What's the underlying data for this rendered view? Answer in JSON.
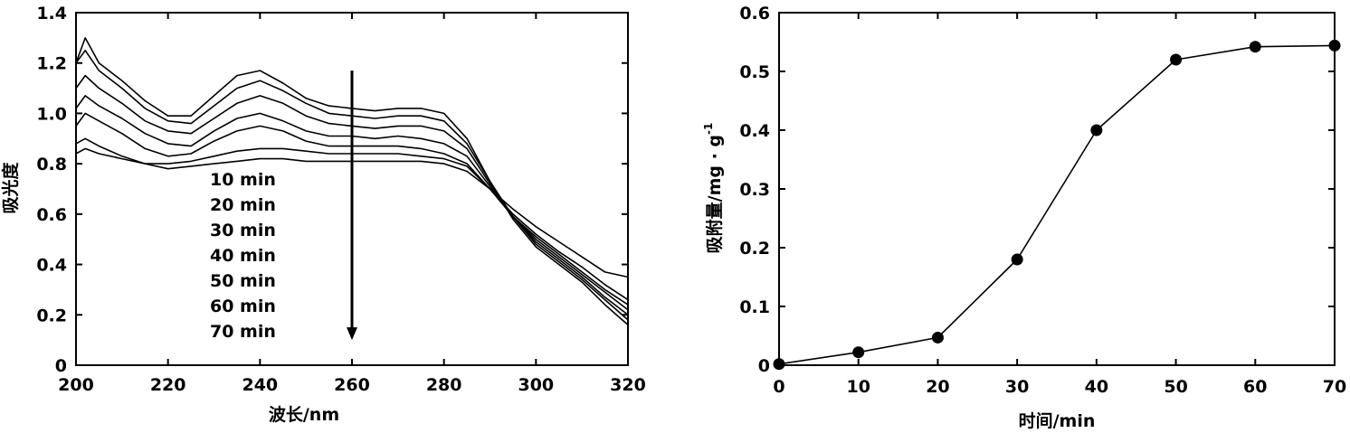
{
  "chart_data": [
    {
      "type": "line",
      "xlabel": "波长/nm",
      "ylabel": "吸光度",
      "xlim": [
        200,
        320
      ],
      "ylim": [
        0,
        1.4
      ],
      "xticks": [
        "200",
        "220",
        "240",
        "260",
        "280",
        "300",
        "320"
      ],
      "yticks": [
        "0",
        "0.2",
        "0.4",
        "0.6",
        "0.8",
        "1.0",
        "1.2",
        "1.4"
      ],
      "legend": [
        "10 min",
        "20 min",
        "30 min",
        "40 min",
        "50 min",
        "60 min",
        "70 min"
      ],
      "annotation": "downward arrow at 260 nm indicating decreasing absorbance with time",
      "arrow": {
        "x": 260,
        "y_start": 1.17,
        "y_end": 0.1
      },
      "x": [
        200,
        202,
        205,
        210,
        215,
        220,
        225,
        230,
        235,
        240,
        245,
        250,
        255,
        260,
        265,
        270,
        275,
        280,
        285,
        290,
        295,
        300,
        305,
        310,
        315,
        320
      ],
      "series": [
        {
          "name": "10 min",
          "values": [
            1.2,
            1.3,
            1.2,
            1.13,
            1.05,
            0.99,
            0.99,
            1.07,
            1.15,
            1.17,
            1.12,
            1.06,
            1.03,
            1.02,
            1.01,
            1.02,
            1.02,
            1.0,
            0.9,
            0.73,
            0.58,
            0.47,
            0.4,
            0.33,
            0.24,
            0.16
          ]
        },
        {
          "name": "20 min",
          "values": [
            1.2,
            1.25,
            1.17,
            1.1,
            1.02,
            0.97,
            0.96,
            1.03,
            1.1,
            1.13,
            1.09,
            1.04,
            1.0,
            0.99,
            0.98,
            0.99,
            0.99,
            0.97,
            0.88,
            0.73,
            0.59,
            0.48,
            0.41,
            0.34,
            0.26,
            0.18
          ]
        },
        {
          "name": "30 min",
          "values": [
            1.1,
            1.15,
            1.1,
            1.04,
            0.97,
            0.93,
            0.92,
            0.98,
            1.04,
            1.07,
            1.04,
            0.99,
            0.96,
            0.95,
            0.94,
            0.95,
            0.95,
            0.93,
            0.86,
            0.72,
            0.59,
            0.49,
            0.42,
            0.35,
            0.27,
            0.2
          ]
        },
        {
          "name": "40 min",
          "values": [
            1.02,
            1.07,
            1.03,
            0.98,
            0.92,
            0.88,
            0.87,
            0.93,
            0.98,
            1.0,
            0.97,
            0.93,
            0.91,
            0.91,
            0.9,
            0.91,
            0.9,
            0.88,
            0.83,
            0.71,
            0.59,
            0.5,
            0.43,
            0.36,
            0.29,
            0.22
          ]
        },
        {
          "name": "50 min",
          "values": [
            0.95,
            1.0,
            0.97,
            0.92,
            0.86,
            0.83,
            0.84,
            0.89,
            0.93,
            0.95,
            0.93,
            0.89,
            0.87,
            0.87,
            0.87,
            0.87,
            0.86,
            0.84,
            0.8,
            0.7,
            0.59,
            0.51,
            0.44,
            0.37,
            0.3,
            0.24
          ]
        },
        {
          "name": "60 min",
          "values": [
            0.88,
            0.9,
            0.87,
            0.83,
            0.8,
            0.8,
            0.81,
            0.83,
            0.85,
            0.86,
            0.86,
            0.85,
            0.84,
            0.84,
            0.84,
            0.84,
            0.83,
            0.82,
            0.79,
            0.7,
            0.6,
            0.52,
            0.45,
            0.39,
            0.32,
            0.26
          ]
        },
        {
          "name": "70 min",
          "values": [
            0.84,
            0.86,
            0.84,
            0.82,
            0.8,
            0.78,
            0.79,
            0.8,
            0.81,
            0.82,
            0.82,
            0.81,
            0.81,
            0.81,
            0.81,
            0.81,
            0.81,
            0.8,
            0.77,
            0.7,
            0.62,
            0.55,
            0.49,
            0.43,
            0.37,
            0.35
          ]
        }
      ]
    },
    {
      "type": "line",
      "xlabel": "时间/min",
      "ylabel": "吸附量/mg · g",
      "ylabel_superscript": "-1",
      "xlim": [
        0,
        70
      ],
      "ylim": [
        0,
        0.6
      ],
      "xticks": [
        "0",
        "10",
        "20",
        "30",
        "40",
        "50",
        "60",
        "70"
      ],
      "yticks": [
        "0",
        "0.1",
        "0.2",
        "0.3",
        "0.4",
        "0.5",
        "0.6"
      ],
      "markers": "filled-circle",
      "x": [
        0,
        10,
        20,
        30,
        40,
        50,
        60,
        70
      ],
      "values": [
        0.002,
        0.022,
        0.047,
        0.18,
        0.4,
        0.52,
        0.542,
        0.544
      ]
    }
  ]
}
